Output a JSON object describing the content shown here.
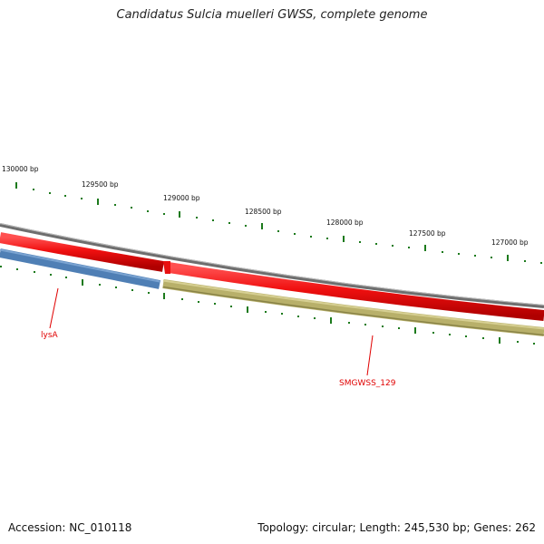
{
  "title": "Candidatus Sulcia muelleri GWSS, complete genome",
  "accession": "Accession: NC_010118",
  "stats": "Topology: circular; Length: 245,530 bp; Genes: 262",
  "ruler": {
    "labels": [
      "130000 bp",
      "129500 bp",
      "129000 bp",
      "128500 bp",
      "128000 bp",
      "127500 bp",
      "127000 bp"
    ],
    "color": "#1c7a1c"
  },
  "genes": [
    {
      "name": "lysA",
      "color": "#4f7fb5",
      "strand": "reverse"
    },
    {
      "name": "SMGWSS_129",
      "color": "#b8b06a",
      "strand": "reverse"
    }
  ],
  "tracks": {
    "backbone_color": "#7a7a7a",
    "cds_color": "#e81010"
  }
}
